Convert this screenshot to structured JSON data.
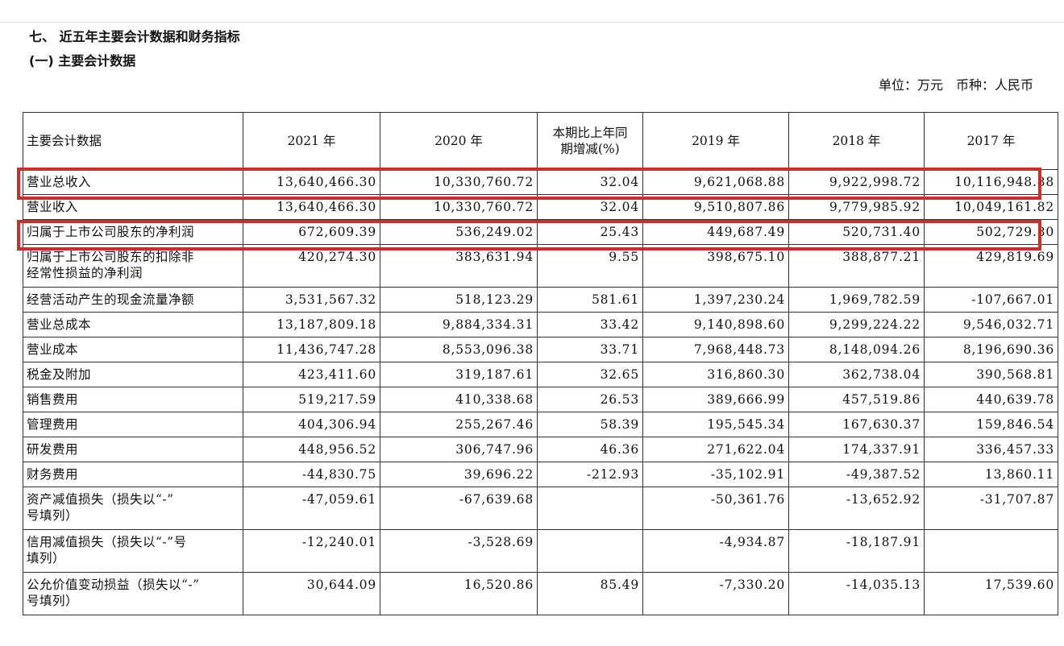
{
  "section_title": "七、 近五年主要会计数据和财务指标",
  "sub_title": "(一) 主要会计数据",
  "unit_label": "单位：万元",
  "currency_label": "币种：人民币",
  "table": {
    "headers": [
      "主要会计数据",
      "2021 年",
      "2020 年",
      "本期比上年同期增减(%)",
      "2019 年",
      "2018 年",
      "2017 年"
    ],
    "change_header_line1": "本期比上年同",
    "change_header_line2": "期增减(%)",
    "rows": [
      {
        "label": "营业总收入",
        "values": [
          "13,640,466.30",
          "10,330,760.72",
          "32.04",
          "9,621,068.88",
          "9,922,998.72",
          "10,116,948.88"
        ],
        "highlighted": true
      },
      {
        "label": "营业收入",
        "values": [
          "13,640,466.30",
          "10,330,760.72",
          "32.04",
          "9,510,807.86",
          "9,779,985.92",
          "10,049,161.82"
        ],
        "highlighted": false
      },
      {
        "label": "归属于上市公司股东的净利润",
        "values": [
          "672,609.39",
          "536,249.02",
          "25.43",
          "449,687.49",
          "520,731.40",
          "502,729.80"
        ],
        "highlighted": true
      },
      {
        "label_line1": "归属于上市公司股东的扣除非",
        "label_line2": "经常性损益的净利润",
        "values": [
          "420,274.30",
          "383,631.94",
          "9.55",
          "398,675.10",
          "388,877.21",
          "429,819.69"
        ],
        "highlighted": false
      },
      {
        "label": "经营活动产生的现金流量净额",
        "values": [
          "3,531,567.32",
          "518,123.29",
          "581.61",
          "1,397,230.24",
          "1,969,782.59",
          "-107,667.01"
        ],
        "highlighted": false
      },
      {
        "label": "营业总成本",
        "values": [
          "13,187,809.18",
          "9,884,334.31",
          "33.42",
          "9,140,898.60",
          "9,299,224.22",
          "9,546,032.71"
        ],
        "highlighted": false
      },
      {
        "label": "营业成本",
        "values": [
          "11,436,747.28",
          "8,553,096.38",
          "33.71",
          "7,968,448.73",
          "8,148,094.26",
          "8,196,690.36"
        ],
        "highlighted": false
      },
      {
        "label": "税金及附加",
        "values": [
          "423,411.60",
          "319,187.61",
          "32.65",
          "316,860.30",
          "362,738.04",
          "390,568.81"
        ],
        "highlighted": false
      },
      {
        "label": "销售费用",
        "values": [
          "519,217.59",
          "410,338.68",
          "26.53",
          "389,666.99",
          "457,519.86",
          "440,639.78"
        ],
        "highlighted": false
      },
      {
        "label": "管理费用",
        "values": [
          "404,306.94",
          "255,267.46",
          "58.39",
          "195,545.34",
          "167,630.37",
          "159,846.54"
        ],
        "highlighted": false
      },
      {
        "label": "研发费用",
        "values": [
          "448,956.52",
          "306,747.96",
          "46.36",
          "271,622.04",
          "174,337.91",
          "336,457.33"
        ],
        "highlighted": false
      },
      {
        "label": "财务费用",
        "values": [
          "-44,830.75",
          "39,696.22",
          "-212.93",
          "-35,102.91",
          "-49,387.52",
          "13,860.11"
        ],
        "highlighted": false
      },
      {
        "label_line1": "资产减值损失（损失以“-”",
        "label_line2": "号填列）",
        "values": [
          "-47,059.61",
          "-67,639.68",
          "",
          "-50,361.76",
          "-13,652.92",
          "-31,707.87"
        ],
        "highlighted": false
      },
      {
        "label_line1": "信用减值损失（损失以“-”号",
        "label_line2": "填列）",
        "values": [
          "-12,240.01",
          "-3,528.69",
          "",
          "-4,934.87",
          "-18,187.91",
          ""
        ],
        "highlighted": false
      },
      {
        "label_line1": "公允价值变动损益（损失以“-”",
        "label_line2": "号填列）",
        "values": [
          "30,644.09",
          "16,520.86",
          "85.49",
          "-7,330.20",
          "-14,035.13",
          "17,539.60"
        ],
        "highlighted": false
      }
    ]
  },
  "highlight_color": "#d42a2a"
}
